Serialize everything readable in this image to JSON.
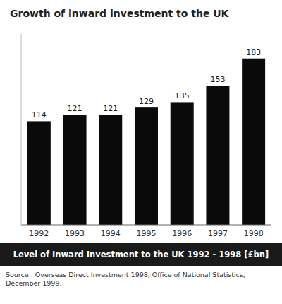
{
  "chart_data": {
    "type": "bar",
    "title": "Growth of inward investment to the UK",
    "subtitle": "Level of Inward Investment to the UK 1992 - 1998 [£bn]",
    "annotations": [
      "Source : Overseas Direct Investment 1998, Office of National Statistics, December 1999."
    ],
    "categories": [
      "1992",
      "1993",
      "1994",
      "1995",
      "1996",
      "1997",
      "1998"
    ],
    "values": [
      114,
      121,
      121,
      129,
      135,
      153,
      183
    ],
    "color": "#0a0a0a",
    "ylim": [
      0,
      210
    ],
    "tick_labels": "x",
    "data_labels": true
  }
}
